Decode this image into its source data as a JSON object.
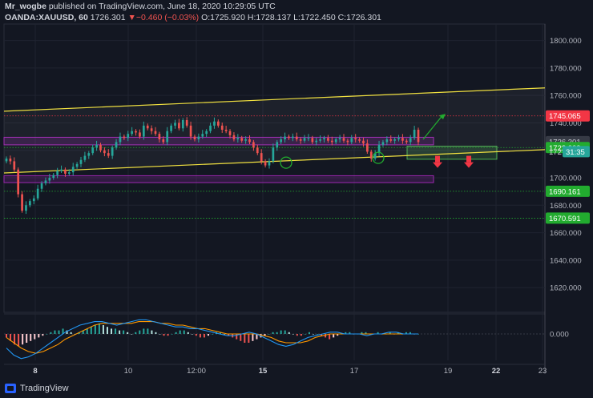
{
  "header": {
    "author": "Mr_wogbe",
    "published": "published on TradingView.com, June 18, 2020 10:29:05 UTC",
    "symbol": "OANDA:XAUUSD, 60",
    "last": "1726.301",
    "change_arrow": "▼",
    "change": "−0.460 (−0.03%)",
    "o_label": "O:",
    "o_value": "1725.920",
    "h_label": "H:",
    "h_value": "1728.137",
    "l_label": "L:",
    "l_value": "1722.450",
    "c_label": "C:",
    "c_value": "1726.301"
  },
  "footer": {
    "brand": "TradingView",
    "logo_icon": "tradingview-logo-icon"
  },
  "chart_data": {
    "type": "candlestick",
    "price_axis": {
      "ticks": [
        1620,
        1640,
        1660,
        1680,
        1700,
        1720,
        1740,
        1760,
        1780,
        1800
      ],
      "tick_labels": [
        "1620.000",
        "1640.000",
        "1660.000",
        "1680.000",
        "1700.000",
        "1720.000",
        "1740.000",
        "1760.000",
        "1780.000",
        "1800.000"
      ],
      "range": [
        1602,
        1812
      ]
    },
    "time_axis": {
      "labels": [
        "8",
        "10",
        "12:00",
        "15",
        "17",
        "19",
        "22",
        "23"
      ],
      "bold": [
        "8",
        "15",
        "22"
      ]
    },
    "price_labels": [
      {
        "value": 1745.065,
        "text": "1745.065",
        "color": "#f23645",
        "text_color": "#ffffff"
      },
      {
        "value": 1726.301,
        "text": "1726.301",
        "color": "#363a45",
        "text_color": "#d1d4dc"
      },
      {
        "value": 1722.009,
        "text": "1722.009",
        "color": "#22ab2f",
        "text_color": "#ffffff"
      },
      {
        "value": 1690.161,
        "text": "1690.161",
        "color": "#22ab2f",
        "text_color": "#ffffff"
      },
      {
        "value": 1670.591,
        "text": "1670.591",
        "color": "#22ab2f",
        "text_color": "#ffffff"
      }
    ],
    "countdown": {
      "partial": "172",
      "time": "31:35",
      "color": "#26a69a"
    },
    "levels": [
      {
        "value": 1745.065,
        "color": "#f23645",
        "style": "dotted"
      },
      {
        "value": 1722.009,
        "color": "#22ab2f",
        "style": "dotted"
      },
      {
        "value": 1690.161,
        "color": "#22ab2f",
        "style": "dotted"
      },
      {
        "value": 1670.591,
        "color": "#22ab2f",
        "style": "dotted"
      }
    ],
    "channel": {
      "color": "#f0e040",
      "upper": [
        [
          0,
          1748.5
        ],
        [
          1,
          1765.5
        ]
      ],
      "lower": [
        [
          0,
          1703.5
        ],
        [
          1,
          1720.5
        ]
      ]
    },
    "zones": [
      {
        "from": 1724.0,
        "to": 1729.5,
        "color": "#9c27b0",
        "label": "purple zone upper"
      },
      {
        "from": 1696.5,
        "to": 1701.5,
        "color": "#9c27b0",
        "label": "purple zone lower"
      },
      {
        "from": 1713.5,
        "to": 1723.0,
        "color": "#4caf50",
        "label": "green box"
      }
    ],
    "price_path": [
      1714,
      1712,
      1706,
      1688,
      1676,
      1680,
      1683,
      1685,
      1692,
      1696,
      1698,
      1700,
      1702,
      1705,
      1706,
      1703,
      1704,
      1708,
      1710,
      1713,
      1716,
      1718,
      1722,
      1724,
      1720,
      1718,
      1716,
      1722,
      1726,
      1730,
      1729,
      1732,
      1734,
      1733,
      1730,
      1738,
      1736,
      1734,
      1732,
      1728,
      1726,
      1734,
      1738,
      1740,
      1736,
      1742,
      1738,
      1730,
      1728,
      1730,
      1732,
      1734,
      1738,
      1741,
      1738,
      1735,
      1734,
      1731,
      1728,
      1729,
      1727,
      1728,
      1726,
      1722,
      1718,
      1712,
      1709,
      1712,
      1722,
      1726,
      1728,
      1730,
      1729,
      1730,
      1728,
      1727,
      1729,
      1729,
      1726,
      1727,
      1728,
      1729,
      1727,
      1726,
      1728,
      1729,
      1727,
      1726,
      1729,
      1728,
      1727,
      1725,
      1719,
      1714,
      1718,
      1724,
      1726,
      1728,
      1727,
      1728,
      1729,
      1727,
      1726,
      1729,
      1735,
      1726
    ],
    "macd": {
      "zero_label": "0.000",
      "histogram": [
        -2,
        -4,
        -6,
        -7,
        -6,
        -5,
        -4,
        -3,
        -2,
        -1,
        0,
        1,
        2,
        2,
        3,
        2,
        1,
        0,
        1,
        2,
        3,
        4,
        5,
        6,
        5,
        4,
        3,
        3,
        2,
        2,
        1,
        0,
        1,
        2,
        3,
        3,
        2,
        1,
        0,
        -1,
        -1,
        0,
        1,
        2,
        2,
        1,
        0,
        -1,
        -2,
        -2,
        -1,
        0,
        1,
        1,
        0,
        -1,
        -2,
        -3,
        -4,
        -5,
        -5,
        -4,
        -3,
        -2,
        -1,
        0,
        1,
        1,
        2,
        2,
        1,
        0,
        -1,
        -1,
        0,
        1,
        0,
        0,
        -1,
        -2,
        -3,
        -2,
        -1,
        0,
        1,
        1,
        0,
        0,
        1,
        1,
        0,
        0,
        1,
        0,
        0,
        1,
        0,
        1,
        0,
        1,
        1,
        0,
        0
      ],
      "macd_line": [
        -8,
        -12,
        -14,
        -13,
        -11,
        -8,
        -5,
        -2,
        1,
        3,
        5,
        6,
        7,
        7,
        6,
        5,
        6,
        7,
        8,
        8,
        7,
        6,
        5,
        4,
        4,
        3,
        3,
        2,
        1,
        0,
        -1,
        -1,
        0,
        1,
        0,
        -2,
        -4,
        -6,
        -7,
        -6,
        -4,
        -2,
        -1,
        0,
        1,
        1,
        0,
        0,
        0,
        -1,
        0,
        0,
        1,
        1,
        0,
        0,
        0
      ],
      "signal_line": [
        -2,
        -5,
        -8,
        -10,
        -11,
        -10,
        -8,
        -6,
        -3,
        -1,
        1,
        3,
        5,
        6,
        6,
        6,
        6,
        6,
        7,
        7,
        7,
        6,
        6,
        5,
        5,
        4,
        3,
        3,
        2,
        1,
        0,
        0,
        0,
        0,
        0,
        -1,
        -2,
        -4,
        -5,
        -5,
        -5,
        -4,
        -2,
        -1,
        0,
        0,
        0,
        0,
        0,
        0,
        0,
        0,
        0,
        0,
        0,
        0,
        0
      ],
      "macd_color": "#2196f3",
      "signal_color": "#ff9800"
    },
    "annotations": {
      "up_arrow_color": "#22ab2f",
      "down_arrow_color": "#f23645",
      "circle_color": "#22ab2f"
    }
  }
}
